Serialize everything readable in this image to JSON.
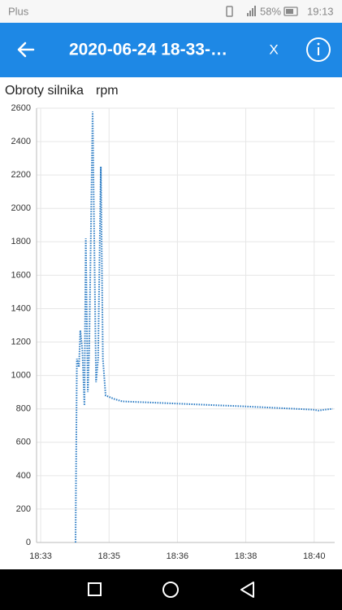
{
  "status_bar": {
    "carrier": "Plus",
    "battery": "58%",
    "time": "19:13"
  },
  "app_bar": {
    "title": "2020-06-24 18-33-…",
    "close": "X"
  },
  "chart_data": {
    "type": "line",
    "title": "Obroty silnika",
    "unit": "rpm",
    "x": [
      66851,
      66853,
      66856,
      66858,
      66861,
      66864,
      66866,
      66869,
      66871,
      66876,
      66881,
      66884,
      66888,
      66891,
      66895,
      66901,
      66907,
      66919,
      66978,
      67097,
      67199,
      67206,
      67215,
      67227
    ],
    "series": [
      {
        "name": "Obroty silnika",
        "color": "#2a7bc4",
        "values": [
          0,
          1100,
          1050,
          1270,
          1150,
          820,
          1820,
          900,
          1150,
          2580,
          960,
          1100,
          2250,
          1100,
          880,
          870,
          860,
          845,
          835,
          815,
          795,
          790,
          795,
          800
        ]
      }
    ],
    "xlim": [
      66794,
      67230
    ],
    "xticks": [
      {
        "value": 66800,
        "label": "18:33"
      },
      {
        "value": 66900,
        "label": "18:35"
      },
      {
        "value": 67000,
        "label": "18:36"
      },
      {
        "value": 67100,
        "label": "18:38"
      },
      {
        "value": 67200,
        "label": "18:40"
      }
    ],
    "ylim": [
      0,
      2600
    ],
    "yticks": [
      0,
      200,
      400,
      600,
      800,
      1000,
      1200,
      1400,
      1600,
      1800,
      2000,
      2200,
      2400,
      2600
    ],
    "grid": true,
    "line_style": "dotted"
  }
}
